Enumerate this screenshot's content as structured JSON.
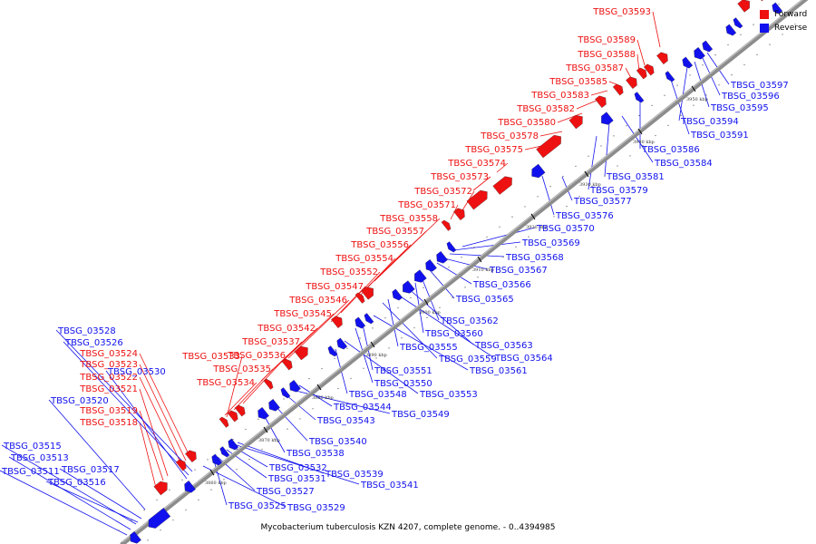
{
  "caption": "Mycobacterium tuberculosis KZN 4207, complete genome. - 0..4394985",
  "legend": {
    "forward_label": "Forward",
    "reverse_label": "Reverse",
    "forward_color": "#ee1111",
    "reverse_color": "#1111ee"
  },
  "colors": {
    "backbone": "#8c8c8c",
    "tick_mark": "#000000"
  },
  "ticks": [
    "3860 kbp",
    "3870 kbp",
    "3880 kbp",
    "3890 kbp",
    "3900 kbp",
    "3910 kbp",
    "3920 kbp",
    "3930 kbp",
    "3940 kbp",
    "3950 kbp"
  ],
  "forward_genes": [
    "TBSG_03593",
    "TBSG_03589",
    "TBSG_03588",
    "TBSG_03587",
    "TBSG_03585",
    "TBSG_03583",
    "TBSG_03582",
    "TBSG_03580",
    "TBSG_03578",
    "TBSG_03575",
    "TBSG_03574",
    "TBSG_03573",
    "TBSG_03572",
    "TBSG_03571",
    "TBSG_03558",
    "TBSG_03557",
    "TBSG_03556",
    "TBSG_03554",
    "TBSG_03552",
    "TBSG_03547",
    "TBSG_03546",
    "TBSG_03545",
    "TBSG_03542",
    "TBSG_03537",
    "TBSG_03536",
    "TBSG_03535",
    "TBSG_03534",
    "TBSG_03533",
    "TBSG_03524",
    "TBSG_03523",
    "TBSG_03522",
    "TBSG_03521",
    "TBSG_03519",
    "TBSG_03518"
  ],
  "reverse_genes": [
    "TBSG_03597",
    "TBSG_03596",
    "TBSG_03595",
    "TBSG_03594",
    "TBSG_03591",
    "TBSG_03586",
    "TBSG_03584",
    "TBSG_03581",
    "TBSG_03579",
    "TBSG_03577",
    "TBSG_03576",
    "TBSG_03570",
    "TBSG_03569",
    "TBSG_03568",
    "TBSG_03567",
    "TBSG_03566",
    "TBSG_03565",
    "TBSG_03562",
    "TBSG_03560",
    "TBSG_03563",
    "TBSG_03564",
    "TBSG_03555",
    "TBSG_03559",
    "TBSG_03561",
    "TBSG_03551",
    "TBSG_03550",
    "TBSG_03553",
    "TBSG_03548",
    "TBSG_03544",
    "TBSG_03549",
    "TBSG_03543",
    "TBSG_03540",
    "TBSG_03538",
    "TBSG_03539",
    "TBSG_03532",
    "TBSG_03531",
    "TBSG_03541",
    "TBSG_03527",
    "TBSG_03525",
    "TBSG_03529",
    "TBSG_03528",
    "TBSG_03526",
    "TBSG_03530",
    "TBSG_03520",
    "TBSG_03515",
    "TBSG_03513",
    "TBSG_03511",
    "TBSG_03517",
    "TBSG_03516"
  ]
}
